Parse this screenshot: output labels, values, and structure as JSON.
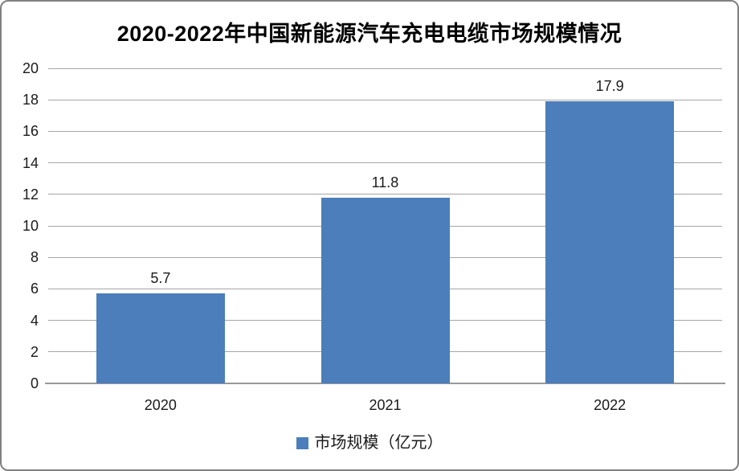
{
  "frame": {
    "background": "#FFFFFF",
    "border_color": "#808080"
  },
  "colors": {
    "bar": "#4B7EBB",
    "gridline": "#A6A6A6",
    "axis_line": "#999999",
    "text": "#1a1a1a",
    "title_text": "#000000"
  },
  "chart_data": {
    "type": "bar",
    "title": "2020-2022年中国新能源汽车充电电缆市场规模情况",
    "categories": [
      "2020",
      "2021",
      "2022"
    ],
    "series": [
      {
        "name": "市场规模（亿元）",
        "values": [
          5.7,
          11.8,
          17.9
        ],
        "color": "#4B7EBB"
      }
    ],
    "data_labels": [
      "5.7",
      "11.8",
      "17.9"
    ],
    "xlabel": "",
    "ylabel": "",
    "ylim": [
      0,
      20
    ],
    "yticks": [
      0,
      2,
      4,
      6,
      8,
      10,
      12,
      14,
      16,
      18,
      20
    ],
    "grid": true,
    "legend_position": "bottom"
  }
}
